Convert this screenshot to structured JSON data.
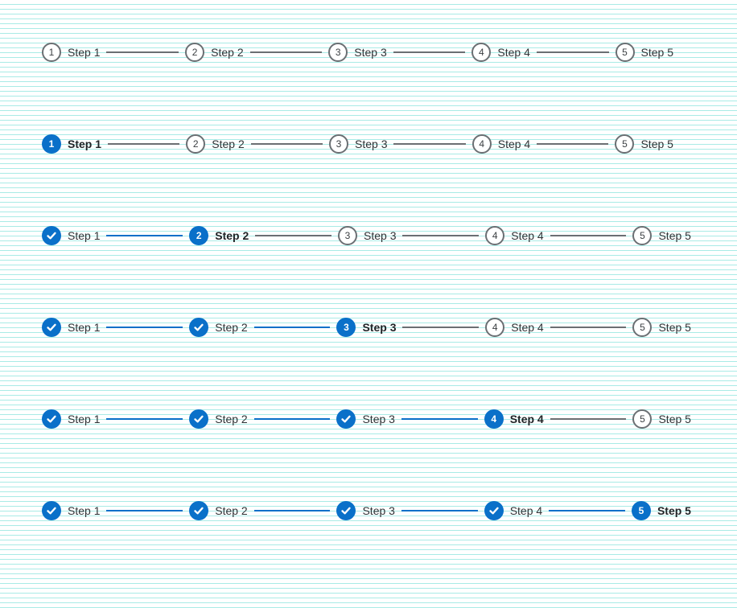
{
  "colors": {
    "accent": "#0a70c9",
    "neutral": "#6b6f73",
    "text": "#2f3336"
  },
  "steppers": [
    {
      "current_step": 0,
      "steps": [
        {
          "number": "1",
          "label": "Step 1",
          "state": "upcoming"
        },
        {
          "number": "2",
          "label": "Step 2",
          "state": "upcoming"
        },
        {
          "number": "3",
          "label": "Step 3",
          "state": "upcoming"
        },
        {
          "number": "4",
          "label": "Step 4",
          "state": "upcoming"
        },
        {
          "number": "5",
          "label": "Step 5",
          "state": "upcoming"
        }
      ]
    },
    {
      "current_step": 1,
      "steps": [
        {
          "number": "1",
          "label": "Step 1",
          "state": "current"
        },
        {
          "number": "2",
          "label": "Step 2",
          "state": "upcoming"
        },
        {
          "number": "3",
          "label": "Step 3",
          "state": "upcoming"
        },
        {
          "number": "4",
          "label": "Step 4",
          "state": "upcoming"
        },
        {
          "number": "5",
          "label": "Step 5",
          "state": "upcoming"
        }
      ]
    },
    {
      "current_step": 2,
      "steps": [
        {
          "number": "1",
          "label": "Step 1",
          "state": "done",
          "icon": "check-icon"
        },
        {
          "number": "2",
          "label": "Step 2",
          "state": "current"
        },
        {
          "number": "3",
          "label": "Step 3",
          "state": "upcoming"
        },
        {
          "number": "4",
          "label": "Step 4",
          "state": "upcoming"
        },
        {
          "number": "5",
          "label": "Step 5",
          "state": "upcoming"
        }
      ]
    },
    {
      "current_step": 3,
      "steps": [
        {
          "number": "1",
          "label": "Step 1",
          "state": "done",
          "icon": "check-icon"
        },
        {
          "number": "2",
          "label": "Step 2",
          "state": "done",
          "icon": "check-icon"
        },
        {
          "number": "3",
          "label": "Step 3",
          "state": "current"
        },
        {
          "number": "4",
          "label": "Step 4",
          "state": "upcoming"
        },
        {
          "number": "5",
          "label": "Step 5",
          "state": "upcoming"
        }
      ]
    },
    {
      "current_step": 4,
      "steps": [
        {
          "number": "1",
          "label": "Step 1",
          "state": "done",
          "icon": "check-icon"
        },
        {
          "number": "2",
          "label": "Step 2",
          "state": "done",
          "icon": "check-icon"
        },
        {
          "number": "3",
          "label": "Step 3",
          "state": "done",
          "icon": "check-icon"
        },
        {
          "number": "4",
          "label": "Step 4",
          "state": "current"
        },
        {
          "number": "5",
          "label": "Step 5",
          "state": "upcoming"
        }
      ]
    },
    {
      "current_step": 5,
      "steps": [
        {
          "number": "1",
          "label": "Step 1",
          "state": "done",
          "icon": "check-icon"
        },
        {
          "number": "2",
          "label": "Step 2",
          "state": "done",
          "icon": "check-icon"
        },
        {
          "number": "3",
          "label": "Step 3",
          "state": "done",
          "icon": "check-icon"
        },
        {
          "number": "4",
          "label": "Step 4",
          "state": "done",
          "icon": "check-icon"
        },
        {
          "number": "5",
          "label": "Step 5",
          "state": "current"
        }
      ]
    }
  ]
}
